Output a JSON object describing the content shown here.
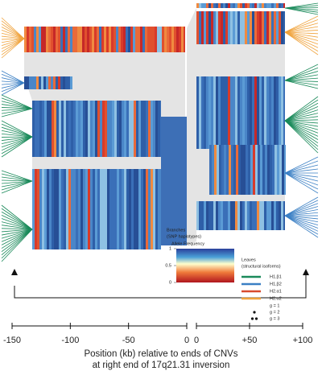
{
  "axes": [
    {
      "xlim": [
        -150,
        0
      ],
      "xticks": [
        -150,
        -100,
        -50,
        0
      ]
    },
    {
      "xlim": [
        0,
        100
      ],
      "xticks": [
        0,
        {
          "value": 50,
          "label": "+50"
        },
        {
          "value": 100,
          "label": "+100"
        }
      ]
    }
  ],
  "x_label": [
    "Position (kb) relative to ends of CNVs",
    "at right end of 17q21.31 inversion"
  ],
  "colorbar": {
    "title": "Branches",
    "subtitle": "(SNP haplotypes)",
    "label": "Allele Frequency",
    "lim": [
      0,
      1
    ],
    "ticks": [
      1,
      0.5,
      0
    ]
  },
  "leaves_legend": {
    "title": "Leaves",
    "subtitle": "(structural isoforms)",
    "entries": [
      {
        "name": "H1.β1",
        "color": "#1a8a5a"
      },
      {
        "name": "H1.β2",
        "color": "#3a7fc4"
      },
      {
        "name": "H2.α1",
        "color": "#d84a2e"
      },
      {
        "name": "H2.α2",
        "color": "#f0a33c"
      }
    ],
    "g": [
      "g = 1",
      "g = 2",
      "g = 3"
    ]
  }
}
